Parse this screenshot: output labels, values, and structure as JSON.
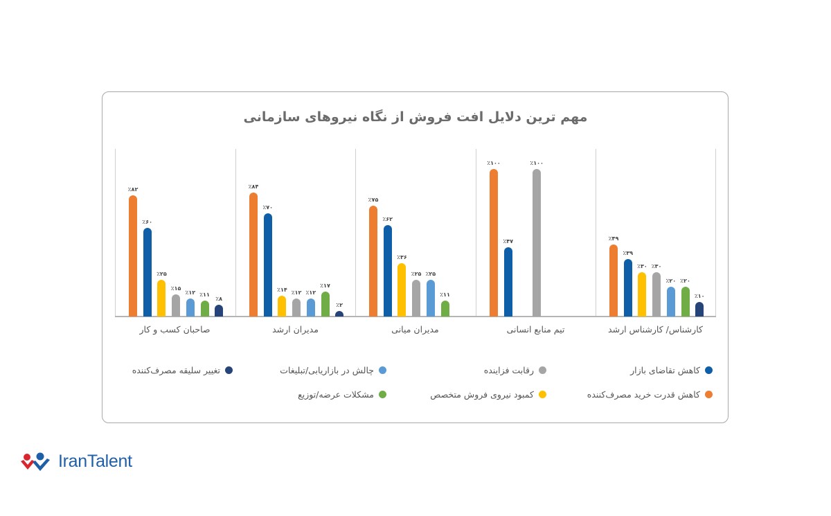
{
  "colors": {
    "demand_drop": "#0F5FA8",
    "purchasing_power_drop": "#ED7D31",
    "competition": "#A5A5A5",
    "skilled_shortage": "#FFC000",
    "marketing_challenge": "#5B9BD5",
    "supply_distribution": "#70AD47",
    "taste_change": "#264478"
  },
  "logo": {
    "text": "IranTalent"
  },
  "chart_data": {
    "type": "bar",
    "title": "مهم ترین دلایل افت فروش از نگاه نیروهای سازمانی",
    "xlabel": "",
    "ylabel": "",
    "ylim": [
      0,
      100
    ],
    "grid": "vertical category separators",
    "legend_position": "bottom",
    "categories": [
      "کارشناس/ کارشناس ارشد",
      "تیم منابع انسانی",
      "مدیران میانی",
      "مدیران ارشد",
      "صاحبان کسب و کار"
    ],
    "series": [
      {
        "name": "کاهش قدرت خرید مصرف‌کننده",
        "color": "#ED7D31",
        "values": [
          49,
          100,
          75,
          84,
          82
        ],
        "labels": [
          "٪۴۹",
          "٪۱۰۰",
          "٪۷۵",
          "٪۸۴",
          "٪۸۲"
        ]
      },
      {
        "name": "کاهش تقاضای بازار",
        "color": "#0F5FA8",
        "values": [
          39,
          47,
          62,
          70,
          60
        ],
        "labels": [
          "٪۳۹",
          "٪۴۷",
          "٪۶۲",
          "٪۷۰",
          "٪۶۰"
        ]
      },
      {
        "name": "کمبود نیروی فروش متخصص",
        "color": "#FFC000",
        "values": [
          30,
          null,
          36,
          14,
          25
        ],
        "labels": [
          "٪۳۰",
          "",
          "٪۳۶",
          "٪۱۴",
          "٪۲۵"
        ]
      },
      {
        "name": "رقابت فزاینده",
        "color": "#A5A5A5",
        "values": [
          30,
          100,
          25,
          12,
          15
        ],
        "labels": [
          "٪۳۰",
          "٪۱۰۰",
          "٪۲۵",
          "٪۱۲",
          "٪۱۵"
        ]
      },
      {
        "name": "چالش در بازاریابی/تبلیغات",
        "color": "#5B9BD5",
        "values": [
          20,
          null,
          25,
          12,
          12
        ],
        "labels": [
          "٪۲۰",
          "",
          "٪۲۵",
          "٪۱۲",
          "٪۱۲"
        ]
      },
      {
        "name": "مشکلات عرضه/توزیع",
        "color": "#70AD47",
        "values": [
          20,
          null,
          11,
          17,
          11
        ],
        "labels": [
          "٪۲۰",
          "",
          "٪۱۱",
          "٪۱۷",
          "٪۱۱"
        ]
      },
      {
        "name": "تغییر سلیقه مصرف‌کننده",
        "color": "#264478",
        "values": [
          10,
          null,
          null,
          2,
          8
        ],
        "labels": [
          "٪۱۰",
          "",
          "",
          "٪۲",
          "٪۸"
        ]
      }
    ]
  },
  "legend": [
    {
      "label": "کاهش تقاضای بازار",
      "color": "#0F5FA8"
    },
    {
      "label": "رقابت فزاینده",
      "color": "#A5A5A5"
    },
    {
      "label": "چالش در بازاریابی/تبلیغات",
      "color": "#5B9BD5"
    },
    {
      "label": "تغییر سلیقه مصرف‌کننده",
      "color": "#264478"
    },
    {
      "label": "کاهش قدرت خرید مصرف‌کننده",
      "color": "#ED7D31"
    },
    {
      "label": "کمبود نیروی فروش متخصص",
      "color": "#FFC000"
    },
    {
      "label": "مشکلات عرضه/توزیع",
      "color": "#70AD47"
    }
  ]
}
